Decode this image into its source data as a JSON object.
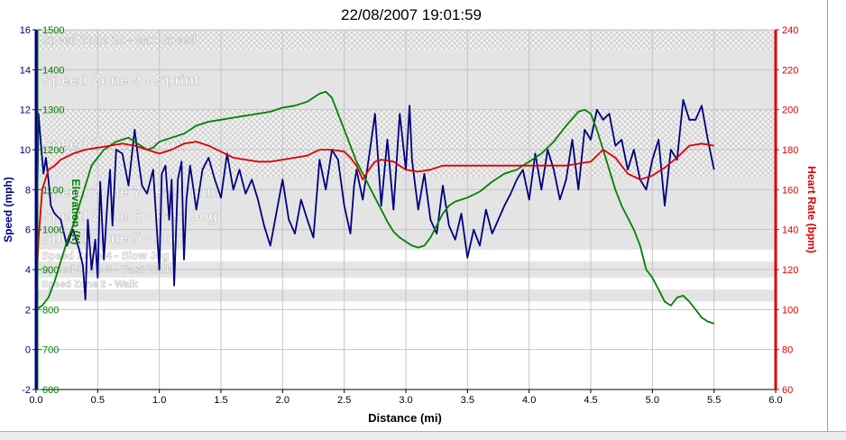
{
  "chart_data": {
    "type": "line",
    "title": "22/08/2007 19:01:59",
    "xlabel": "Distance (mi)",
    "x_ticks": [
      "0.0",
      "0.5",
      "1.0",
      "1.5",
      "2.0",
      "2.5",
      "3.0",
      "3.5",
      "4.0",
      "4.5",
      "5.0",
      "5.5",
      "6.0"
    ],
    "xlim": [
      0,
      6
    ],
    "grid": true,
    "axes": {
      "speed": {
        "label": "Speed (mph)",
        "color": "#000080",
        "ylim": [
          -2,
          16
        ],
        "ticks": [
          "-2",
          "0",
          "2",
          "4",
          "6",
          "8",
          "10",
          "12",
          "14",
          "16"
        ]
      },
      "elevation": {
        "label": "Elevation (ft)",
        "color": "#008000",
        "ylim": [
          600,
          1500
        ],
        "ticks": [
          "600",
          "700",
          "800",
          "900",
          "1000",
          "1100",
          "1200",
          "1300",
          "1400",
          "1500"
        ]
      },
      "heart_rate": {
        "label": "Heart Rate (bpm)",
        "color": "#dd0000",
        "ylim": [
          60,
          240
        ],
        "ticks": [
          "60",
          "80",
          "100",
          "120",
          "140",
          "160",
          "180",
          "200",
          "220",
          "240"
        ]
      }
    },
    "zones": [
      {
        "name": "Speed Zone 10 - Max Speed",
        "from": 15,
        "to": 16,
        "style": "hatch"
      },
      {
        "name": "Speed Zone 9 - Sprint",
        "from": 12,
        "to": 15,
        "style": "fill"
      },
      {
        "name": "Speed Zone 8 - Run",
        "from": 8.6,
        "to": 12,
        "style": "hatch"
      },
      {
        "name": "Speed Zone 7 - Fast Run",
        "from": 7.2,
        "to": 8.6,
        "style": "fill"
      },
      {
        "name": "Speed Zone 6 - Fast Jog",
        "from": 6.2,
        "to": 7.2,
        "style": "fill"
      },
      {
        "name": "Speed Zone 5 - Jog",
        "from": 5.0,
        "to": 6.2,
        "style": "fill"
      },
      {
        "name": "Speed Zone 4 - Slow Jog",
        "from": 4.4,
        "to": 5.0,
        "style": "none"
      },
      {
        "name": "Speed Zone 3 - Fast Walk",
        "from": 3.6,
        "to": 4.4,
        "style": "fill"
      },
      {
        "name": "Speed Zone 2 - Walk",
        "from": 3.0,
        "to": 3.6,
        "style": "none"
      },
      {
        "name": "",
        "from": 2.4,
        "to": 3.0,
        "style": "fill"
      }
    ],
    "series": [
      {
        "name": "Speed",
        "axis": "speed",
        "color": "#000080",
        "x": [
          0.0,
          0.02,
          0.04,
          0.06,
          0.08,
          0.1,
          0.12,
          0.15,
          0.2,
          0.25,
          0.3,
          0.35,
          0.38,
          0.4,
          0.42,
          0.45,
          0.48,
          0.5,
          0.52,
          0.55,
          0.58,
          0.6,
          0.62,
          0.65,
          0.7,
          0.75,
          0.8,
          0.83,
          0.86,
          0.9,
          0.95,
          1.0,
          1.02,
          1.05,
          1.08,
          1.1,
          1.12,
          1.15,
          1.18,
          1.2,
          1.22,
          1.25,
          1.3,
          1.35,
          1.4,
          1.45,
          1.5,
          1.55,
          1.6,
          1.65,
          1.7,
          1.75,
          1.8,
          1.85,
          1.9,
          2.0,
          2.05,
          2.1,
          2.15,
          2.2,
          2.25,
          2.3,
          2.35,
          2.4,
          2.45,
          2.5,
          2.55,
          2.58,
          2.6,
          2.65,
          2.7,
          2.75,
          2.8,
          2.85,
          2.9,
          2.95,
          3.0,
          3.03,
          3.05,
          3.1,
          3.15,
          3.2,
          3.25,
          3.3,
          3.35,
          3.4,
          3.45,
          3.5,
          3.55,
          3.6,
          3.65,
          3.7,
          3.75,
          3.8,
          3.85,
          3.9,
          3.95,
          4.0,
          4.05,
          4.1,
          4.15,
          4.2,
          4.25,
          4.3,
          4.35,
          4.4,
          4.45,
          4.5,
          4.55,
          4.6,
          4.65,
          4.7,
          4.75,
          4.8,
          4.85,
          4.9,
          4.95,
          5.0,
          5.05,
          5.1,
          5.15,
          5.2,
          5.25,
          5.3,
          5.35,
          5.4,
          5.45,
          5.5
        ],
        "values": [
          3.2,
          11.8,
          10.2,
          8.8,
          9.6,
          8.5,
          7.2,
          6.8,
          6.5,
          5.2,
          6.0,
          5.0,
          4.2,
          2.5,
          6.5,
          4.0,
          5.5,
          3.6,
          8.4,
          4.5,
          7.5,
          9.0,
          6.2,
          10.0,
          9.8,
          8.2,
          11.0,
          9.5,
          8.2,
          7.8,
          9.0,
          4.0,
          8.8,
          9.2,
          6.5,
          8.5,
          3.2,
          8.5,
          9.4,
          4.5,
          7.5,
          9.2,
          7.0,
          9.0,
          9.6,
          8.5,
          7.6,
          9.8,
          8.0,
          9.0,
          7.8,
          8.5,
          7.5,
          6.2,
          5.2,
          8.5,
          6.5,
          5.8,
          7.5,
          6.5,
          5.6,
          9.5,
          8.0,
          10.0,
          9.5,
          7.2,
          5.8,
          8.2,
          9.0,
          7.5,
          9.6,
          11.8,
          7.2,
          10.5,
          7.0,
          11.8,
          9.0,
          12.2,
          9.5,
          7.0,
          8.8,
          6.5,
          5.8,
          8.2,
          6.2,
          5.5,
          6.8,
          4.6,
          6.0,
          5.2,
          7.0,
          5.8,
          6.5,
          7.2,
          7.8,
          8.5,
          9.0,
          7.5,
          9.8,
          8.0,
          10.0,
          9.0,
          7.5,
          8.5,
          10.5,
          8.0,
          11.0,
          10.5,
          12.0,
          11.5,
          11.8,
          10.2,
          10.5,
          9.0,
          10.0,
          8.5,
          8.0,
          9.5,
          10.5,
          7.2,
          10.0,
          9.5,
          12.5,
          11.5,
          11.5,
          12.2,
          10.5,
          9.0
        ],
        "note": ""
      },
      {
        "name": "Elevation",
        "axis": "elevation",
        "color": "#008000",
        "x": [
          0.0,
          0.05,
          0.1,
          0.15,
          0.2,
          0.25,
          0.3,
          0.35,
          0.4,
          0.45,
          0.5,
          0.55,
          0.6,
          0.65,
          0.7,
          0.75,
          0.8,
          0.85,
          0.9,
          0.95,
          1.0,
          1.1,
          1.2,
          1.3,
          1.4,
          1.5,
          1.6,
          1.7,
          1.8,
          1.9,
          2.0,
          2.1,
          2.2,
          2.3,
          2.35,
          2.4,
          2.45,
          2.5,
          2.55,
          2.6,
          2.65,
          2.7,
          2.75,
          2.8,
          2.85,
          2.9,
          2.95,
          3.0,
          3.05,
          3.1,
          3.15,
          3.2,
          3.25,
          3.3,
          3.35,
          3.4,
          3.45,
          3.5,
          3.6,
          3.7,
          3.8,
          3.9,
          4.0,
          4.1,
          4.2,
          4.3,
          4.4,
          4.45,
          4.5,
          4.55,
          4.6,
          4.65,
          4.7,
          4.75,
          4.8,
          4.85,
          4.9,
          4.95,
          5.0,
          5.05,
          5.1,
          5.15,
          5.2,
          5.25,
          5.3,
          5.35,
          5.4,
          5.45,
          5.5
        ],
        "values": [
          800,
          810,
          830,
          870,
          920,
          970,
          1010,
          1060,
          1110,
          1160,
          1180,
          1200,
          1210,
          1220,
          1225,
          1230,
          1220,
          1210,
          1200,
          1205,
          1220,
          1230,
          1240,
          1260,
          1270,
          1275,
          1280,
          1285,
          1290,
          1295,
          1305,
          1310,
          1320,
          1340,
          1345,
          1330,
          1290,
          1250,
          1210,
          1170,
          1140,
          1110,
          1080,
          1050,
          1020,
          995,
          980,
          970,
          960,
          955,
          960,
          980,
          1010,
          1040,
          1060,
          1070,
          1075,
          1080,
          1095,
          1120,
          1140,
          1150,
          1170,
          1190,
          1220,
          1260,
          1295,
          1300,
          1290,
          1250,
          1200,
          1150,
          1100,
          1060,
          1030,
          1000,
          960,
          900,
          880,
          850,
          820,
          810,
          830,
          835,
          820,
          800,
          780,
          770,
          765
        ],
        "note": ""
      },
      {
        "name": "Heart Rate",
        "axis": "heart_rate",
        "color": "#dd0000",
        "x": [
          0.0,
          0.02,
          0.05,
          0.1,
          0.15,
          0.2,
          0.3,
          0.4,
          0.5,
          0.6,
          0.7,
          0.8,
          0.9,
          1.0,
          1.1,
          1.2,
          1.3,
          1.4,
          1.5,
          1.6,
          1.7,
          1.8,
          1.9,
          2.0,
          2.1,
          2.2,
          2.3,
          2.4,
          2.5,
          2.55,
          2.6,
          2.65,
          2.7,
          2.75,
          2.8,
          2.9,
          3.0,
          3.1,
          3.2,
          3.3,
          3.4,
          3.5,
          3.6,
          3.7,
          3.8,
          3.9,
          4.0,
          4.1,
          4.2,
          4.3,
          4.4,
          4.5,
          4.6,
          4.7,
          4.8,
          4.9,
          5.0,
          5.1,
          5.2,
          5.3,
          5.4,
          5.5
        ],
        "values": [
          105,
          135,
          160,
          170,
          172,
          175,
          178,
          180,
          181,
          182,
          183,
          182,
          180,
          178,
          180,
          183,
          184,
          182,
          179,
          176,
          175,
          174,
          174,
          175,
          176,
          177,
          180,
          180,
          179,
          176,
          172,
          165,
          170,
          174,
          175,
          174,
          170,
          169,
          170,
          172,
          172,
          172,
          172,
          172,
          172,
          172,
          172,
          172,
          172,
          172,
          173,
          174,
          180,
          176,
          168,
          165,
          167,
          171,
          176,
          182,
          183,
          182
        ]
      }
    ]
  }
}
